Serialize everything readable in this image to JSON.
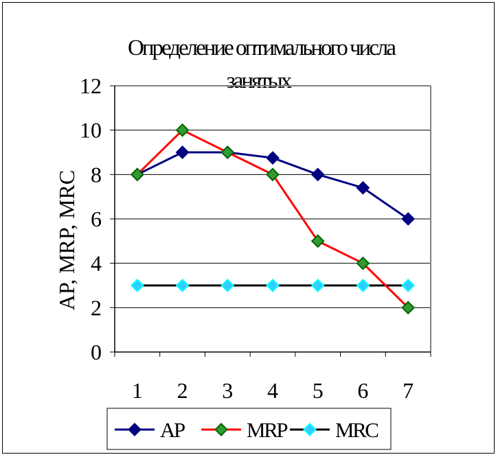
{
  "chart_data": {
    "type": "line",
    "title_line1": "Определение оптимального числа",
    "title_line2": "занятых",
    "ylabel": "AP, MRP, MRC",
    "xlabel": "",
    "categories": [
      "1",
      "2",
      "3",
      "4",
      "5",
      "6",
      "7"
    ],
    "ylim": [
      0,
      12
    ],
    "yticks": [
      "0",
      "2",
      "4",
      "6",
      "8",
      "10",
      "12"
    ],
    "grid": true,
    "legend_position": "bottom",
    "series": [
      {
        "name": "AP",
        "values": [
          8,
          9,
          9,
          8.75,
          8,
          7.4,
          6
        ],
        "line_color": "#000080",
        "marker_color": "#000080",
        "marker_edge": "#000080"
      },
      {
        "name": "MRP",
        "values": [
          8,
          10,
          9,
          8,
          5,
          4,
          2
        ],
        "line_color": "#ff0000",
        "marker_color": "#339933",
        "marker_edge": "#006600"
      },
      {
        "name": "MRC",
        "values": [
          3,
          3,
          3,
          3,
          3,
          3,
          3
        ],
        "line_color": "#000000",
        "marker_color": "#33ccff",
        "marker_edge": "#00ffff"
      }
    ]
  }
}
